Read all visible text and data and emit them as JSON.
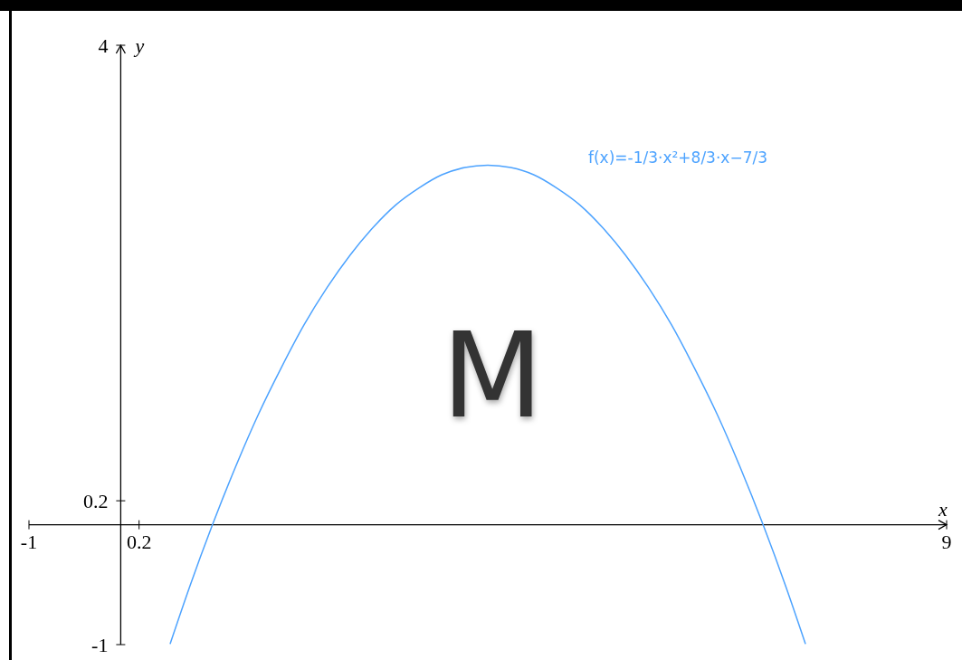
{
  "chart_data": {
    "type": "line",
    "xlabel": "x",
    "ylabel": "y",
    "xlim": [
      -1,
      9
    ],
    "ylim": [
      -1,
      4
    ],
    "xticks": [
      -1,
      0.2,
      9
    ],
    "yticks": [
      -1,
      0.2,
      4
    ],
    "grid": false,
    "legend": false,
    "marker": "none",
    "line_style": "solid",
    "annotations": [
      "M"
    ],
    "series": [
      {
        "name": "f(x)=-1/3·x²+8/3·x−7/3",
        "color": "#4da3ff",
        "x": [
          0.54,
          0.75,
          1,
          1.25,
          1.5,
          1.75,
          2,
          2.25,
          2.5,
          2.75,
          3,
          3.25,
          3.5,
          3.75,
          4,
          4.25,
          4.5,
          4.75,
          5,
          5.25,
          5.5,
          5.75,
          6,
          6.25,
          6.5,
          6.75,
          7,
          7.25,
          7.46
        ],
        "values": [
          -0.99,
          -0.52,
          0,
          0.48,
          0.92,
          1.31,
          1.67,
          1.98,
          2.25,
          2.48,
          2.67,
          2.81,
          2.92,
          2.98,
          3,
          2.98,
          2.92,
          2.81,
          2.67,
          2.48,
          2.25,
          1.98,
          1.67,
          1.31,
          0.92,
          0.48,
          0,
          -0.52,
          -0.99
        ]
      }
    ]
  }
}
